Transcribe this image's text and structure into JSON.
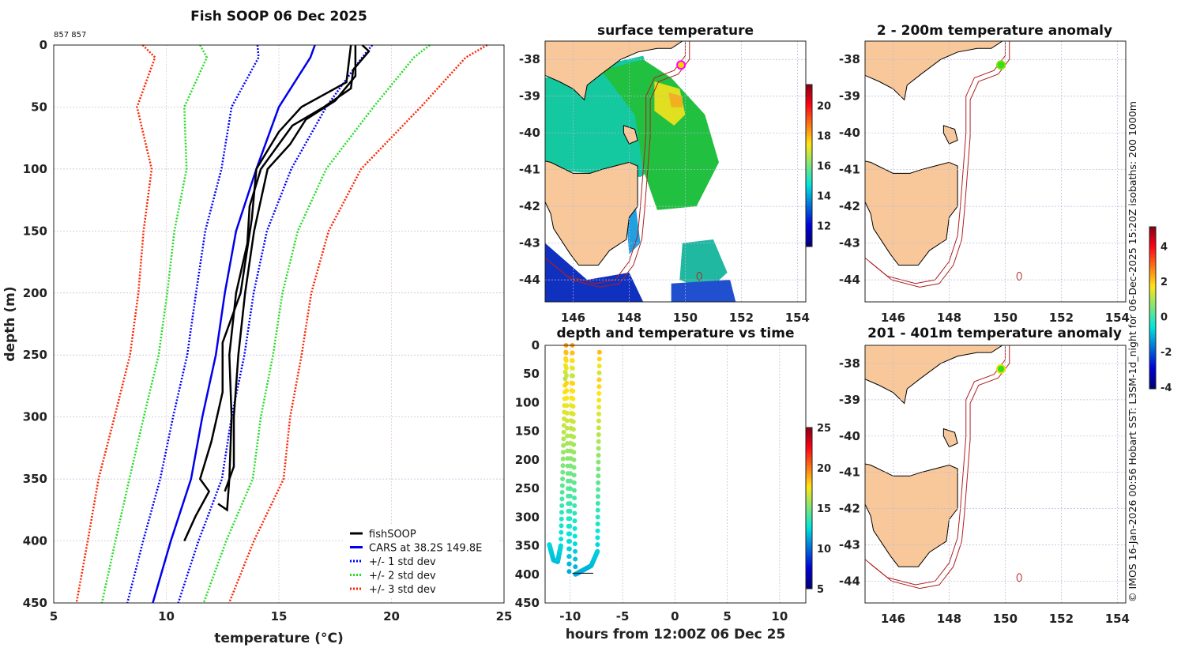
{
  "chart_data": [
    {
      "type": "line",
      "title": "Fish SOOP 06 Dec 2025",
      "subtitle": "857 857",
      "xlabel": "temperature (°C)",
      "xlabel_base": "temperature (",
      "xlabel_sup": "o",
      "xlabel_end": "C)",
      "ylabel": "depth (m)",
      "xlim": [
        5,
        25
      ],
      "ylim": [
        450,
        0
      ],
      "xticks": [
        "5",
        "10",
        "15",
        "20",
        "25"
      ],
      "yticks": [
        "0",
        "50",
        "100",
        "150",
        "200",
        "250",
        "300",
        "350",
        "400",
        "450"
      ],
      "grid": true,
      "legend_position": "bottom-right",
      "legend": [
        "fishSOOP",
        "CARS at 38.2S 149.8E",
        "+/- 1 std dev",
        "+/- 2 std dev",
        "+/- 3 std dev"
      ],
      "colors": {
        "fishSOOP": "#000000",
        "cars": "#0000ee",
        "std1": "#0000ff",
        "std2": "#22dd22",
        "std3": "#ff2200"
      },
      "cars": {
        "depth": [
          0,
          10,
          50,
          100,
          150,
          200,
          250,
          300,
          350,
          400,
          450
        ],
        "mean": [
          16.6,
          16.4,
          15.0,
          14.0,
          13.1,
          12.6,
          12.2,
          11.6,
          11.1,
          10.2,
          9.4
        ],
        "std": [
          2.55,
          2.3,
          2.1,
          1.55,
          1.37,
          1.28,
          1.27,
          1.3,
          1.37,
          1.23,
          1.13
        ]
      },
      "fishsoop_traces": [
        [
          [
            0,
            18.7
          ],
          [
            5,
            19.0
          ],
          [
            20,
            18.3
          ],
          [
            35,
            18.2
          ],
          [
            50,
            17.0
          ],
          [
            65,
            15.6
          ],
          [
            80,
            15.0
          ],
          [
            100,
            14.2
          ],
          [
            130,
            13.7
          ],
          [
            160,
            13.6
          ],
          [
            200,
            13.1
          ],
          [
            250,
            12.8
          ],
          [
            300,
            12.9
          ],
          [
            350,
            12.8
          ],
          [
            375,
            12.7
          ],
          [
            370,
            12.3
          ]
        ],
        [
          [
            0,
            18.4
          ],
          [
            25,
            18.4
          ],
          [
            45,
            17.5
          ],
          [
            60,
            16.2
          ],
          [
            80,
            15.5
          ],
          [
            100,
            14.5
          ],
          [
            150,
            13.9
          ],
          [
            200,
            13.5
          ],
          [
            250,
            13.2
          ],
          [
            300,
            13.0
          ],
          [
            340,
            13.0
          ],
          [
            360,
            12.6
          ]
        ],
        [
          [
            0,
            18.2
          ],
          [
            30,
            18.0
          ],
          [
            50,
            16.0
          ],
          [
            70,
            15.0
          ],
          [
            100,
            14.0
          ],
          [
            140,
            13.8
          ],
          [
            200,
            13.3
          ],
          [
            240,
            12.5
          ],
          [
            280,
            12.5
          ],
          [
            320,
            12.0
          ],
          [
            350,
            11.5
          ],
          [
            360,
            11.9
          ],
          [
            380,
            11.3
          ],
          [
            400,
            10.8
          ]
        ]
      ]
    },
    {
      "type": "heatmap",
      "title": "surface temperature",
      "xticks": [
        "146",
        "148",
        "150",
        "152",
        "154"
      ],
      "yticks": [
        "-38",
        "-39",
        "-40",
        "-41",
        "-42",
        "-43",
        "-44"
      ],
      "xlim": [
        145.0,
        154.3
      ],
      "ylim": [
        -44.6,
        -37.5
      ],
      "colorbar": {
        "range": [
          10.6,
          21.4
        ],
        "ticks": [
          "12",
          "14",
          "16",
          "18",
          "20"
        ]
      }
    },
    {
      "type": "scatter",
      "title": "depth and temperature vs time",
      "xlabel": "hours from 12:00Z 06 Dec 25",
      "xticks": [
        "-10",
        "-5",
        "0",
        "5",
        "10"
      ],
      "yticks": [
        "0",
        "50",
        "100",
        "150",
        "200",
        "250",
        "300",
        "350",
        "400",
        "450"
      ],
      "xlim": [
        -12.4,
        12.5
      ],
      "ylim": [
        450,
        0
      ],
      "points": [
        [
          -12.0,
          348,
          12.5
        ],
        [
          -11.6,
          375,
          12
        ],
        [
          -11.2,
          378,
          12
        ],
        [
          -10.9,
          350,
          12
        ],
        [
          -10.4,
          0,
          19
        ],
        [
          -10.1,
          395,
          11
        ],
        [
          -9.8,
          0,
          19
        ],
        [
          -9.5,
          400,
          11
        ],
        [
          -9.0,
          395,
          11
        ],
        [
          -8.0,
          385,
          11
        ],
        [
          -7.4,
          360,
          12
        ],
        [
          -7.2,
          0,
          19
        ]
      ],
      "colorbar": {
        "range": [
          5,
          25
        ],
        "ticks": [
          "5",
          "10",
          "15",
          "20",
          "25"
        ]
      }
    },
    {
      "type": "heatmap",
      "title": "2 - 200m temperature anomaly",
      "xticks": [
        "146",
        "148",
        "150",
        "152",
        "154"
      ],
      "yticks": [
        "-38",
        "-39",
        "-40",
        "-41",
        "-42",
        "-43",
        "-44"
      ],
      "xlim": [
        145.0,
        154.3
      ],
      "ylim": [
        -44.6,
        -37.5
      ],
      "colorbar": {
        "range": [
          -4.1,
          5.1
        ],
        "ticks": [
          "4",
          "2",
          "0",
          "-2",
          "-4"
        ]
      }
    },
    {
      "type": "heatmap",
      "title": "201 - 401m temperature anomaly",
      "xticks": [
        "146",
        "148",
        "150",
        "152",
        "154"
      ],
      "yticks": [
        "-38",
        "-39",
        "-40",
        "-41",
        "-42",
        "-43",
        "-44"
      ],
      "xlim": [
        145.0,
        154.3
      ],
      "ylim": [
        -44.6,
        -37.5
      ]
    }
  ],
  "credit": "© IMOS 16-Jan-2026 00:56 Hobart SST: L3SM-1d_night for 06-Dec-2025 15:20Z isobaths: 200  1000m",
  "colors": {
    "land": "#f8c89a",
    "isobath": "#b02020"
  }
}
